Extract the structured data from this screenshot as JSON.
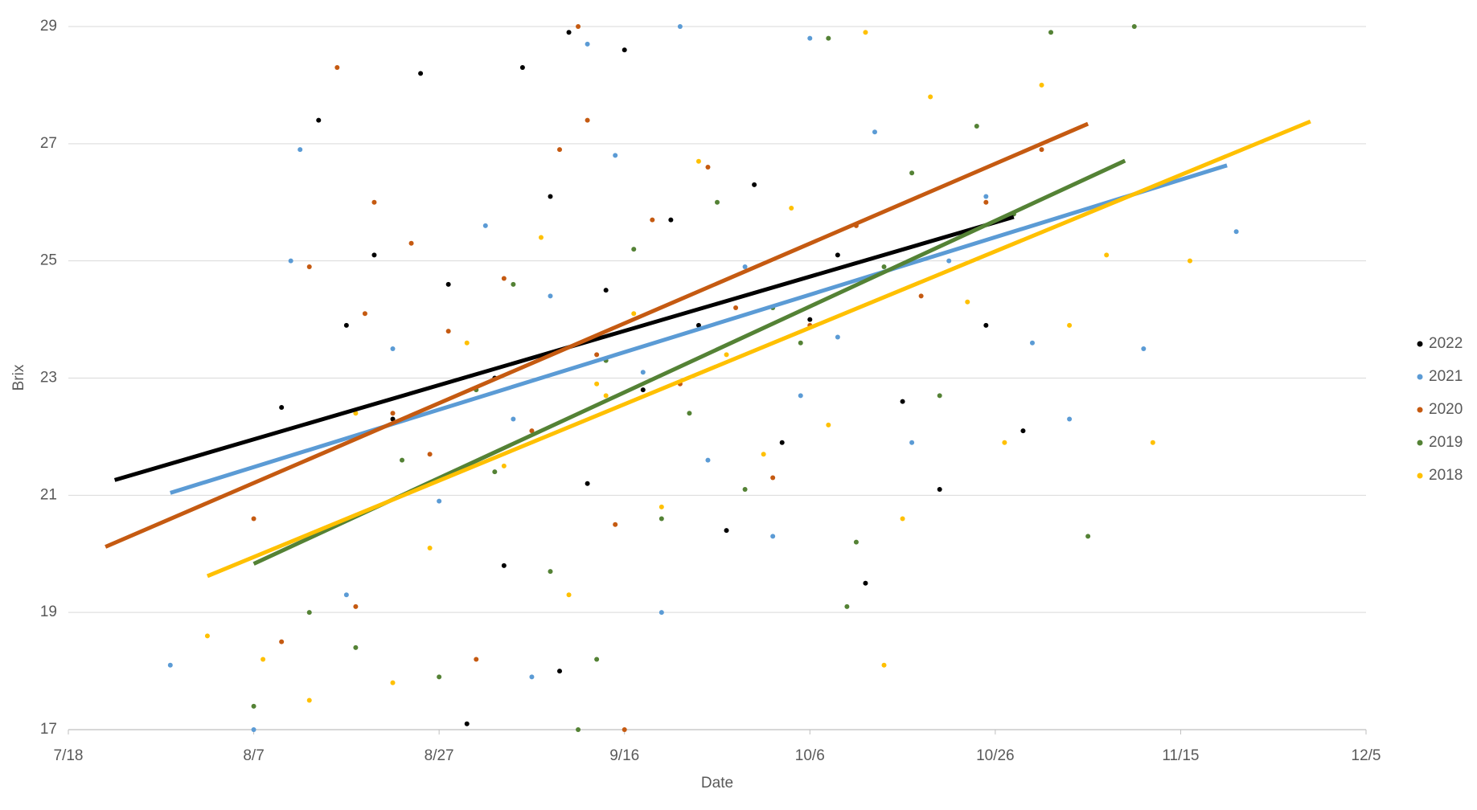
{
  "chart_data": {
    "type": "scatter",
    "x_label": "Date",
    "y_label": "Brix",
    "xlim": [
      "7/18",
      "12/5"
    ],
    "xticks": [
      "7/18",
      "8/7",
      "8/27",
      "9/16",
      "10/6",
      "10/26",
      "11/15",
      "12/5"
    ],
    "ylim": [
      17,
      29
    ],
    "yticks": [
      17,
      19,
      21,
      23,
      25,
      27,
      29
    ],
    "grid": true,
    "legend": "right",
    "series": [
      {
        "name": "2022",
        "color": "#000000",
        "x": [
          "8/14",
          "8/17",
          "8/20",
          "8/22",
          "8/25",
          "8/28",
          "8/30",
          "9/2",
          "9/5",
          "9/8",
          "9/10",
          "9/12",
          "9/14",
          "9/16",
          "9/18",
          "9/21",
          "9/24",
          "9/27",
          "9/30",
          "10/3",
          "10/6",
          "10/9",
          "10/12",
          "10/16",
          "10/20",
          "10/25",
          "10/29",
          "8/10",
          "9/9",
          "9/3"
        ],
        "values": [
          27.4,
          23.9,
          25.1,
          22.3,
          28.2,
          24.6,
          17.1,
          23.0,
          28.3,
          26.1,
          28.9,
          21.2,
          24.5,
          28.6,
          22.8,
          25.7,
          23.9,
          20.4,
          26.3,
          21.9,
          24.0,
          25.1,
          19.5,
          22.6,
          21.1,
          23.9,
          22.1,
          22.5,
          18.0,
          19.8
        ],
        "trend": {
          "x": [
            "7/23",
            "10/28"
          ],
          "values": [
            21.26,
            25.75
          ]
        }
      },
      {
        "name": "2021",
        "color": "#5b9bd5",
        "x": [
          "7/29",
          "8/7",
          "8/12",
          "8/17",
          "8/22",
          "8/27",
          "9/1",
          "9/4",
          "9/8",
          "9/12",
          "9/15",
          "9/18",
          "9/22",
          "9/25",
          "9/29",
          "10/2",
          "10/6",
          "10/9",
          "10/13",
          "10/17",
          "10/21",
          "10/25",
          "10/30",
          "11/3",
          "11/11",
          "11/21",
          "8/11",
          "9/20",
          "10/5",
          "9/6"
        ],
        "values": [
          18.1,
          17.0,
          26.9,
          19.3,
          23.5,
          20.9,
          25.6,
          22.3,
          24.4,
          28.7,
          26.8,
          23.1,
          29.0,
          21.6,
          24.9,
          20.3,
          28.8,
          23.7,
          27.2,
          21.9,
          25.0,
          26.1,
          23.6,
          22.3,
          23.5,
          25.5,
          25.0,
          19.0,
          22.7,
          17.9
        ],
        "trend": {
          "x": [
            "7/29",
            "11/20"
          ],
          "values": [
            21.04,
            26.63
          ]
        }
      },
      {
        "name": "2020",
        "color": "#c55a11",
        "x": [
          "8/7",
          "8/10",
          "8/13",
          "8/16",
          "8/18",
          "8/20",
          "8/22",
          "8/24",
          "8/26",
          "8/28",
          "8/31",
          "9/3",
          "9/6",
          "9/9",
          "9/11",
          "9/13",
          "9/16",
          "9/19",
          "9/22",
          "9/25",
          "9/28",
          "10/2",
          "10/6",
          "10/11",
          "10/18",
          "10/25",
          "10/31",
          "8/19",
          "9/12",
          "9/15"
        ],
        "values": [
          20.6,
          18.5,
          24.9,
          28.3,
          19.1,
          26.0,
          22.4,
          25.3,
          21.7,
          23.8,
          18.2,
          24.7,
          22.1,
          26.9,
          29.0,
          23.4,
          17.0,
          25.7,
          22.9,
          26.6,
          24.2,
          21.3,
          23.9,
          25.6,
          24.4,
          26.0,
          26.9,
          24.1,
          27.4,
          20.5
        ],
        "trend": {
          "x": [
            "7/22",
            "11/5"
          ],
          "values": [
            20.12,
            27.34
          ]
        }
      },
      {
        "name": "2019",
        "color": "#548235",
        "x": [
          "8/7",
          "8/13",
          "8/18",
          "8/23",
          "8/27",
          "8/31",
          "9/4",
          "9/8",
          "9/11",
          "9/14",
          "9/17",
          "9/20",
          "9/23",
          "9/26",
          "9/29",
          "10/2",
          "10/5",
          "10/8",
          "10/11",
          "10/14",
          "10/17",
          "10/20",
          "10/24",
          "10/28",
          "11/1",
          "11/5",
          "11/10",
          "9/13",
          "9/2",
          "10/10"
        ],
        "values": [
          17.4,
          19.0,
          18.4,
          21.6,
          17.9,
          22.8,
          24.6,
          19.7,
          17.0,
          23.3,
          25.2,
          20.6,
          22.4,
          26.0,
          21.1,
          24.2,
          23.6,
          28.8,
          20.2,
          24.9,
          26.5,
          22.7,
          27.3,
          25.8,
          28.9,
          20.3,
          29.0,
          18.2,
          21.4,
          19.1
        ],
        "trend": {
          "x": [
            "8/7",
            "11/9"
          ],
          "values": [
            19.83,
            26.71
          ]
        }
      },
      {
        "name": "2018",
        "color": "#ffc000",
        "x": [
          "8/2",
          "8/8",
          "8/13",
          "8/18",
          "8/22",
          "8/26",
          "8/30",
          "9/3",
          "9/7",
          "9/10",
          "9/13",
          "9/17",
          "9/20",
          "9/24",
          "9/27",
          "10/1",
          "10/4",
          "10/8",
          "10/12",
          "10/16",
          "10/19",
          "10/23",
          "10/27",
          "10/31",
          "11/3",
          "11/7",
          "11/12",
          "11/16",
          "9/14",
          "10/14"
        ],
        "values": [
          18.6,
          18.2,
          17.5,
          22.4,
          17.8,
          20.1,
          23.6,
          21.5,
          25.4,
          19.3,
          22.9,
          24.1,
          20.8,
          26.7,
          23.4,
          21.7,
          25.9,
          22.2,
          28.9,
          20.6,
          27.8,
          24.3,
          21.9,
          28.0,
          23.9,
          25.1,
          21.9,
          25.0,
          22.7,
          18.1
        ],
        "trend": {
          "x": [
            "8/2",
            "11/29"
          ],
          "values": [
            19.62,
            27.38
          ]
        }
      }
    ]
  }
}
